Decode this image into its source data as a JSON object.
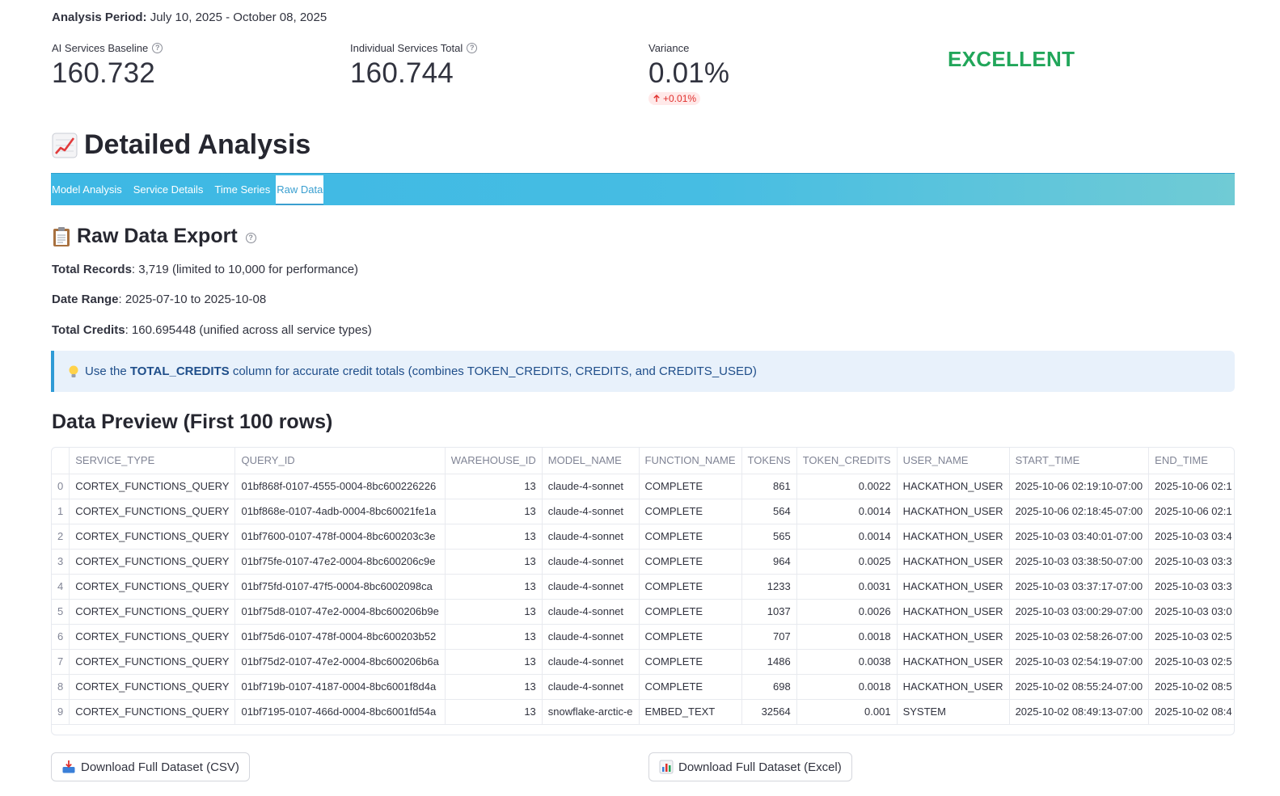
{
  "period": {
    "label": "Analysis Period:",
    "value": "July 10, 2025 - October 08, 2025"
  },
  "metrics": [
    {
      "label": "AI Services Baseline",
      "value": "160.732",
      "help": true
    },
    {
      "label": "Individual Services Total",
      "value": "160.744",
      "help": true
    },
    {
      "label": "Variance",
      "value": "0.01%",
      "delta": "+0.01%",
      "delta_direction": "up",
      "delta_color": "#e0312e"
    }
  ],
  "status": {
    "text": "EXCELLENT",
    "color": "#21a65a"
  },
  "detailed_analysis": {
    "title": "Detailed Analysis",
    "icon": "chart-increasing-icon"
  },
  "tabs": [
    {
      "label": "Model Analysis",
      "active": false
    },
    {
      "label": "Service Details",
      "active": false
    },
    {
      "label": "Time Series",
      "active": false
    },
    {
      "label": "Raw Data",
      "active": true
    }
  ],
  "raw_export": {
    "title": "Raw Data Export",
    "icon": "clipboard-icon",
    "lines": [
      {
        "label": "Total Records",
        "value": ": 3,719 (limited to 10,000 for performance)"
      },
      {
        "label": "Date Range",
        "value": ": 2025-07-10 to 2025-10-08"
      },
      {
        "label": "Total Credits",
        "value": ": 160.695448 (unified across all service types)"
      }
    ]
  },
  "callout": {
    "icon": "lightbulb-icon",
    "prefix": "Use the ",
    "emphasis": "TOTAL_CREDITS",
    "suffix": " column for accurate credit totals (combines TOKEN_CREDITS, CREDITS, and CREDITS_USED)"
  },
  "preview": {
    "title": "Data Preview (First 100 rows)",
    "columns": [
      "",
      "SERVICE_TYPE",
      "QUERY_ID",
      "WAREHOUSE_ID",
      "MODEL_NAME",
      "FUNCTION_NAME",
      "TOKENS",
      "TOKEN_CREDITS",
      "USER_NAME",
      "START_TIME",
      "END_TIME"
    ],
    "rows": [
      [
        "0",
        "CORTEX_FUNCTIONS_QUERY",
        "01bf868f-0107-4555-0004-8bc600226226",
        "13",
        "claude-4-sonnet",
        "COMPLETE",
        "861",
        "0.0022",
        "HACKATHON_USER",
        "2025-10-06 02:19:10-07:00",
        "2025-10-06 02:1"
      ],
      [
        "1",
        "CORTEX_FUNCTIONS_QUERY",
        "01bf868e-0107-4adb-0004-8bc60021fe1a",
        "13",
        "claude-4-sonnet",
        "COMPLETE",
        "564",
        "0.0014",
        "HACKATHON_USER",
        "2025-10-06 02:18:45-07:00",
        "2025-10-06 02:1"
      ],
      [
        "2",
        "CORTEX_FUNCTIONS_QUERY",
        "01bf7600-0107-478f-0004-8bc600203c3e",
        "13",
        "claude-4-sonnet",
        "COMPLETE",
        "565",
        "0.0014",
        "HACKATHON_USER",
        "2025-10-03 03:40:01-07:00",
        "2025-10-03 03:4"
      ],
      [
        "3",
        "CORTEX_FUNCTIONS_QUERY",
        "01bf75fe-0107-47e2-0004-8bc600206c9e",
        "13",
        "claude-4-sonnet",
        "COMPLETE",
        "964",
        "0.0025",
        "HACKATHON_USER",
        "2025-10-03 03:38:50-07:00",
        "2025-10-03 03:3"
      ],
      [
        "4",
        "CORTEX_FUNCTIONS_QUERY",
        "01bf75fd-0107-47f5-0004-8bc6002098ca",
        "13",
        "claude-4-sonnet",
        "COMPLETE",
        "1233",
        "0.0031",
        "HACKATHON_USER",
        "2025-10-03 03:37:17-07:00",
        "2025-10-03 03:3"
      ],
      [
        "5",
        "CORTEX_FUNCTIONS_QUERY",
        "01bf75d8-0107-47e2-0004-8bc600206b9e",
        "13",
        "claude-4-sonnet",
        "COMPLETE",
        "1037",
        "0.0026",
        "HACKATHON_USER",
        "2025-10-03 03:00:29-07:00",
        "2025-10-03 03:0"
      ],
      [
        "6",
        "CORTEX_FUNCTIONS_QUERY",
        "01bf75d6-0107-478f-0004-8bc600203b52",
        "13",
        "claude-4-sonnet",
        "COMPLETE",
        "707",
        "0.0018",
        "HACKATHON_USER",
        "2025-10-03 02:58:26-07:00",
        "2025-10-03 02:5"
      ],
      [
        "7",
        "CORTEX_FUNCTIONS_QUERY",
        "01bf75d2-0107-47e2-0004-8bc600206b6a",
        "13",
        "claude-4-sonnet",
        "COMPLETE",
        "1486",
        "0.0038",
        "HACKATHON_USER",
        "2025-10-03 02:54:19-07:00",
        "2025-10-03 02:5"
      ],
      [
        "8",
        "CORTEX_FUNCTIONS_QUERY",
        "01bf719b-0107-4187-0004-8bc6001f8d4a",
        "13",
        "claude-4-sonnet",
        "COMPLETE",
        "698",
        "0.0018",
        "HACKATHON_USER",
        "2025-10-02 08:55:24-07:00",
        "2025-10-02 08:5"
      ],
      [
        "9",
        "CORTEX_FUNCTIONS_QUERY",
        "01bf7195-0107-466d-0004-8bc6001fd54a",
        "13",
        "snowflake-arctic-e",
        "EMBED_TEXT",
        "32564",
        "0.001",
        "SYSTEM",
        "2025-10-02 08:49:13-07:00",
        "2025-10-02 08:4"
      ]
    ]
  },
  "buttons": {
    "csv": {
      "label": "Download Full Dataset (CSV)",
      "icon": "inbox-tray-icon"
    },
    "excel": {
      "label": "Download Full Dataset (Excel)",
      "icon": "bar-chart-icon"
    }
  }
}
